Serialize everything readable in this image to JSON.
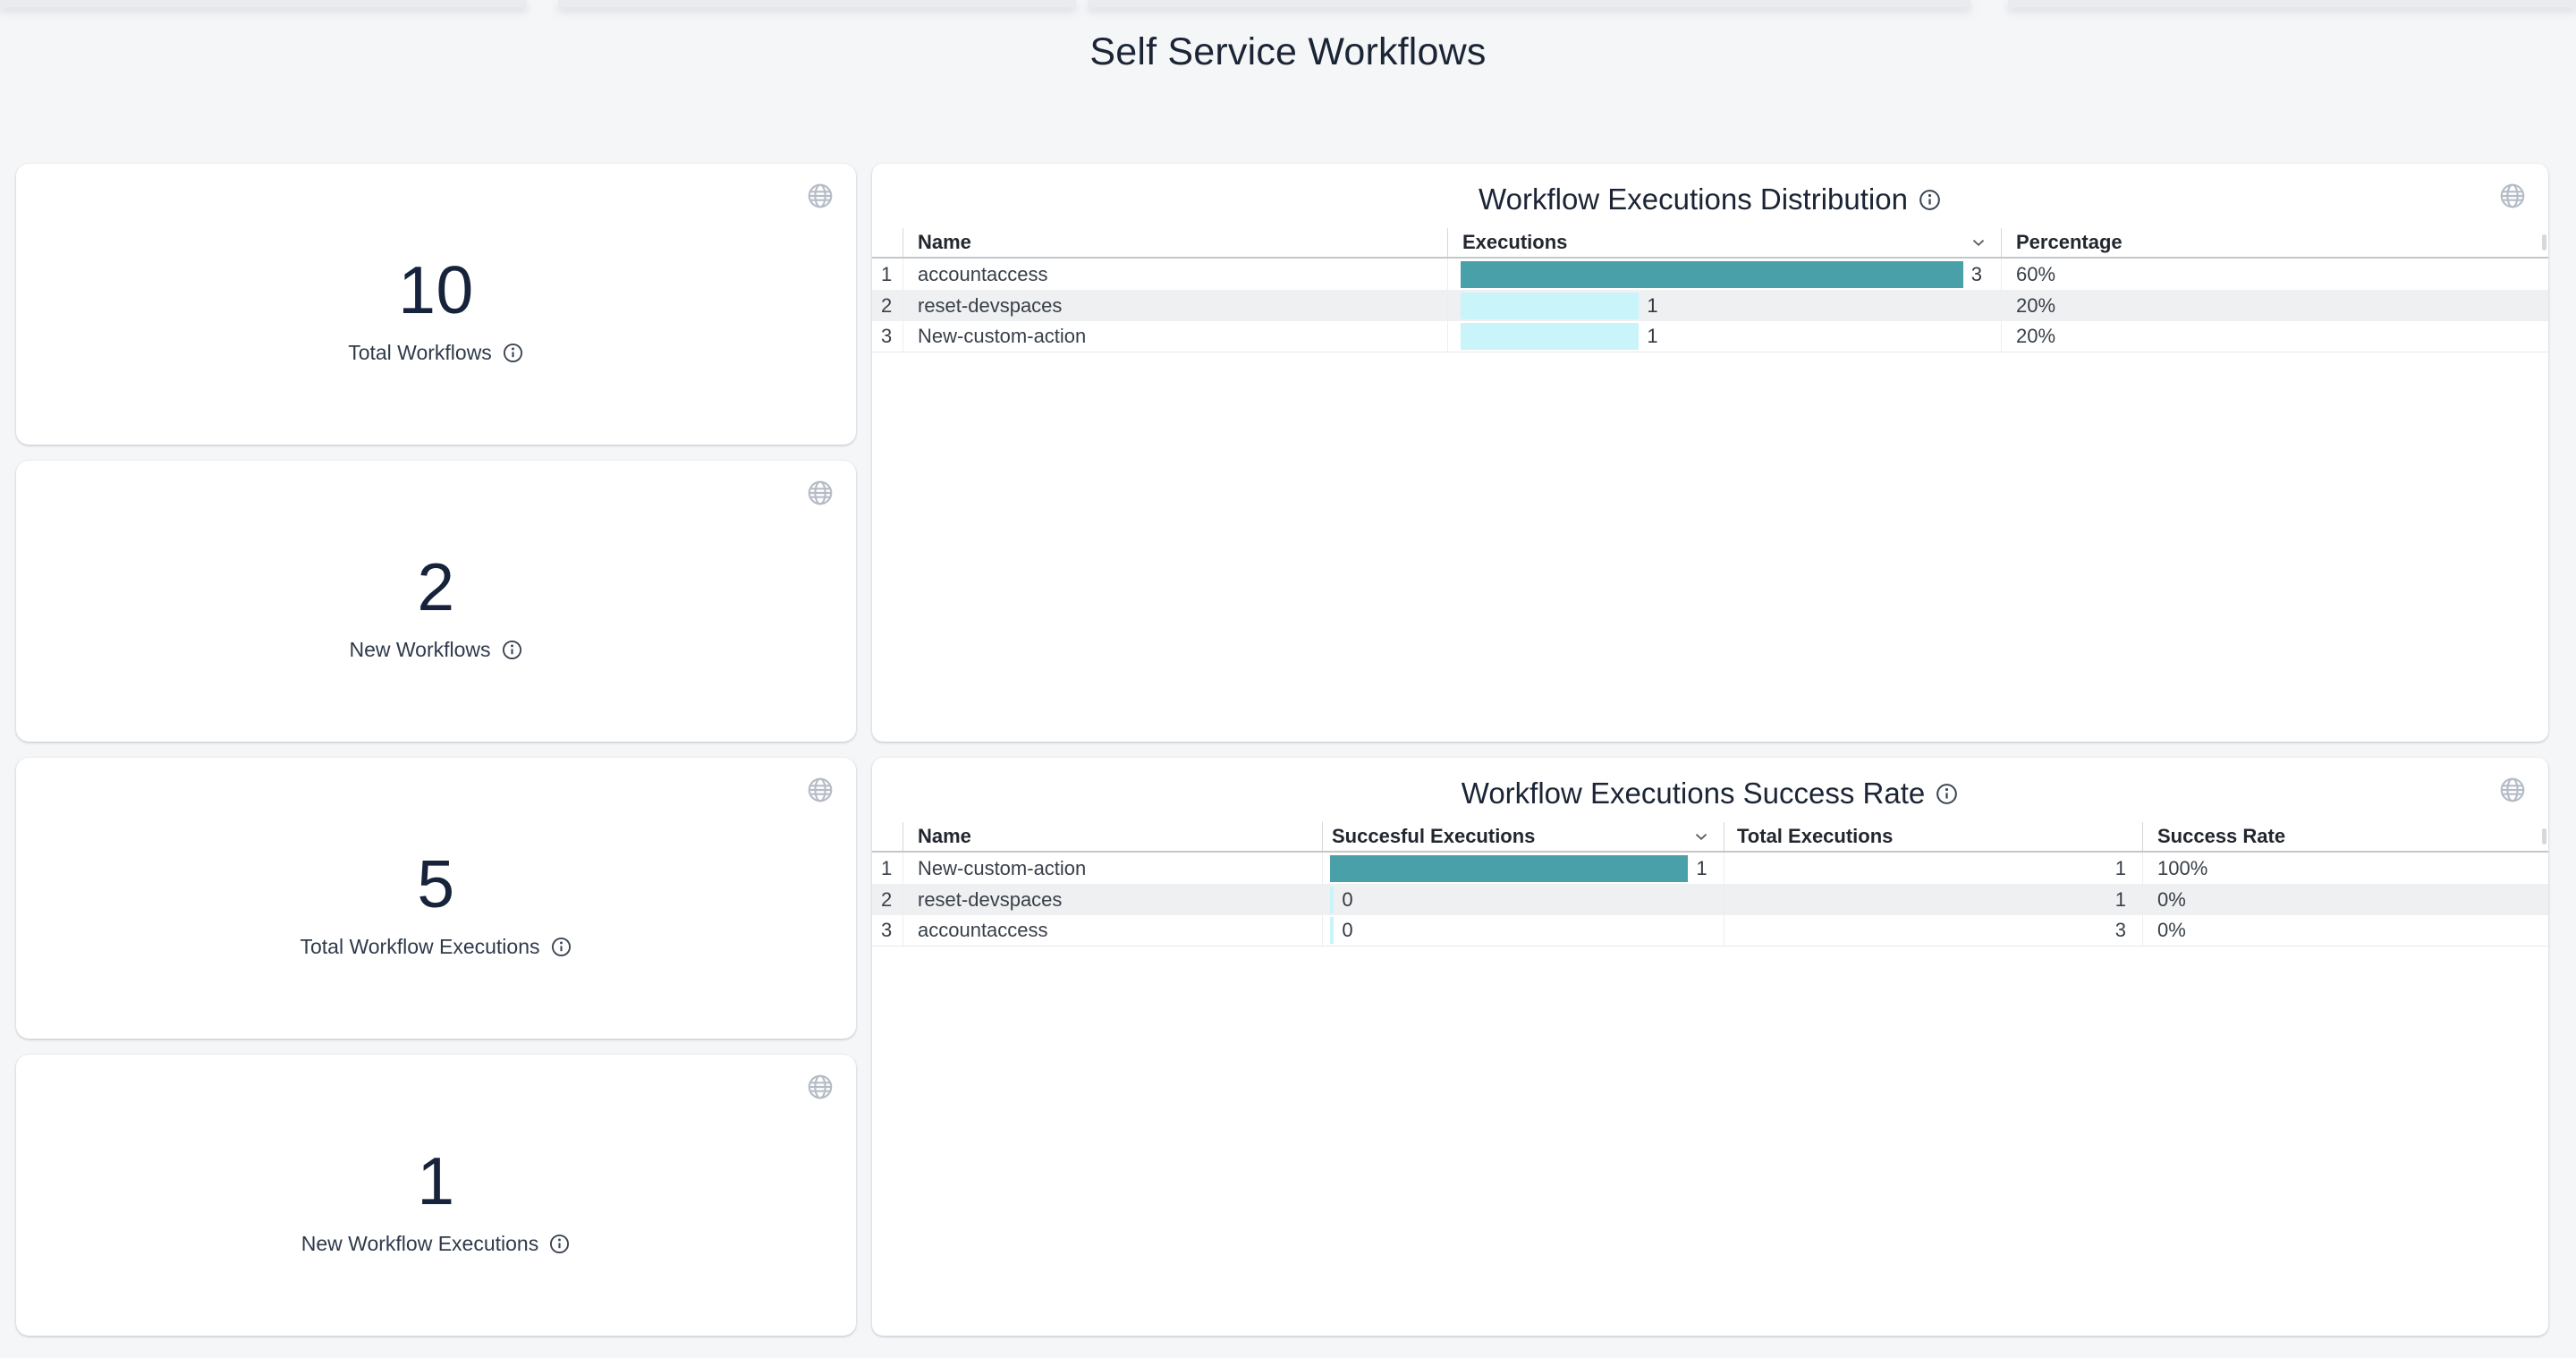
{
  "page": {
    "title": "Self Service Workflows"
  },
  "colors": {
    "background": "#f5f6f8",
    "bar_teal": "#4AA0A9",
    "bar_cyan": "#C9F4FA",
    "text_dark": "#1b2535"
  },
  "icons": {
    "globe": "globe-icon",
    "info": "info-icon",
    "sort": "chevron-down-icon"
  },
  "cards": [
    {
      "value": "10",
      "label": "Total Workflows"
    },
    {
      "value": "2",
      "label": "New Workflows"
    },
    {
      "value": "5",
      "label": "Total Workflow Executions"
    },
    {
      "value": "1",
      "label": "New Workflow Executions"
    }
  ],
  "panels": [
    {
      "title": "Workflow Executions Distribution",
      "columns": [
        "Name",
        "Executions",
        "Percentage"
      ],
      "sorted_column": "Executions",
      "rows": [
        {
          "index": "1",
          "name": "accountaccess",
          "value": "3",
          "bar": "93%",
          "bar_color": "#4AA0A9",
          "percentage": "60%"
        },
        {
          "index": "2",
          "name": "reset-devspaces",
          "value": "1",
          "bar": "33%",
          "bar_color": "#C9F4FA",
          "percentage": "20%"
        },
        {
          "index": "3",
          "name": "New-custom-action",
          "value": "1",
          "bar": "33%",
          "bar_color": "#C9F4FA",
          "percentage": "20%"
        }
      ]
    },
    {
      "title": "Workflow Executions Success Rate",
      "columns": [
        "Name",
        "Succesful Executions",
        "Total Executions",
        "Success Rate"
      ],
      "sorted_column": "Succesful Executions",
      "rows": [
        {
          "index": "1",
          "name": "New-custom-action",
          "value": "1",
          "bar": "91%",
          "bar_color": "#4AA0A9",
          "total": "1",
          "rate": "100%"
        },
        {
          "index": "2",
          "name": "reset-devspaces",
          "value": "0",
          "bar": "1%",
          "bar_color": "#C9F4FA",
          "total": "1",
          "rate": "0%"
        },
        {
          "index": "3",
          "name": "accountaccess",
          "value": "0",
          "bar": "1%",
          "bar_color": "#C9F4FA",
          "total": "3",
          "rate": "0%"
        }
      ]
    }
  ],
  "chart_data": [
    {
      "type": "bar",
      "title": "Workflow Executions Distribution",
      "categories": [
        "accountaccess",
        "reset-devspaces",
        "New-custom-action"
      ],
      "values": [
        3,
        1,
        1
      ],
      "percentages": [
        "60%",
        "20%",
        "20%"
      ],
      "xlabel": "Executions",
      "ylabel": "Name"
    },
    {
      "type": "bar",
      "title": "Workflow Executions Success Rate",
      "categories": [
        "New-custom-action",
        "reset-devspaces",
        "accountaccess"
      ],
      "series": [
        {
          "name": "Succesful Executions",
          "values": [
            1,
            0,
            0
          ]
        },
        {
          "name": "Total Executions",
          "values": [
            1,
            1,
            3
          ]
        }
      ],
      "success_rate": [
        "100%",
        "0%",
        "0%"
      ]
    }
  ]
}
